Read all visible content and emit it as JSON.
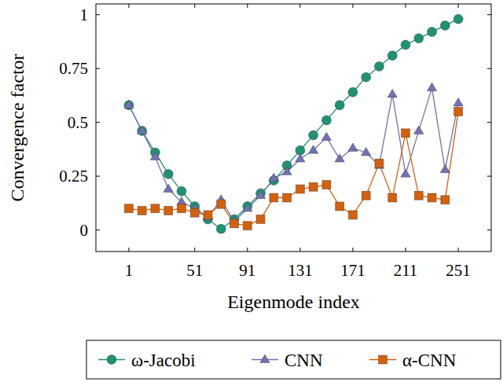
{
  "chart_data": {
    "type": "line",
    "x_label": "Eigenmode index",
    "y_label": "Convergence factor",
    "x": [
      1,
      11,
      21,
      31,
      41,
      51,
      61,
      71,
      81,
      91,
      101,
      111,
      121,
      131,
      141,
      151,
      161,
      171,
      181,
      191,
      201,
      211,
      221,
      231,
      241,
      251
    ],
    "series": [
      {
        "name": "ω-Jacobi",
        "color": "#1f9274",
        "marker": "circle",
        "line_style": "solid",
        "values": [
          0.58,
          0.46,
          0.36,
          0.26,
          0.18,
          0.11,
          0.05,
          0.005,
          0.05,
          0.11,
          0.17,
          0.23,
          0.3,
          0.37,
          0.44,
          0.51,
          0.58,
          0.64,
          0.71,
          0.76,
          0.81,
          0.86,
          0.89,
          0.92,
          0.95,
          0.98
        ]
      },
      {
        "name": "CNN",
        "color": "#7272b2",
        "marker": "triangle",
        "line_style": "solid",
        "values": [
          0.58,
          0.46,
          0.34,
          0.19,
          0.13,
          0.1,
          0.06,
          0.14,
          0.04,
          0.1,
          0.16,
          0.24,
          0.27,
          0.33,
          0.37,
          0.43,
          0.33,
          0.38,
          0.36,
          0.3,
          0.63,
          0.26,
          0.46,
          0.66,
          0.28,
          0.59
        ]
      },
      {
        "name": "α-CNN",
        "color": "#d5600c",
        "marker": "square",
        "line_style": "solid",
        "values": [
          0.1,
          0.09,
          0.1,
          0.09,
          0.1,
          0.08,
          0.07,
          0.12,
          0.03,
          0.02,
          0.05,
          0.15,
          0.15,
          0.19,
          0.2,
          0.21,
          0.11,
          0.07,
          0.16,
          0.31,
          0.15,
          0.45,
          0.16,
          0.15,
          0.14,
          0.55
        ]
      }
    ],
    "xlim": [
      -24,
      276
    ],
    "xticks": [
      1,
      51,
      91,
      131,
      171,
      211,
      251
    ],
    "ylim": [
      -0.1,
      1.05
    ],
    "yticks": [
      0,
      0.25,
      0.5,
      0.75,
      1
    ],
    "grid": false,
    "legend": "bottom"
  }
}
